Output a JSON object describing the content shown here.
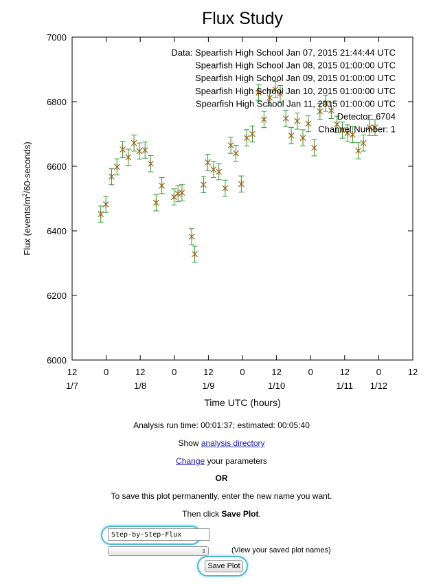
{
  "chart_data": {
    "type": "scatter",
    "title": "Flux Study",
    "xlabel": "Time UTC (hours)",
    "ylabel_main": "Flux (events/m",
    "ylabel_sup": "2",
    "ylabel_tail": "/60-seconds)",
    "ylim": [
      6000,
      7000
    ],
    "yticks": [
      6000,
      6200,
      6400,
      6600,
      6800,
      7000
    ],
    "xlim_hours": [
      -12,
      108
    ],
    "xticks": [
      {
        "h": -12,
        "l1": "12",
        "l2": "1/7"
      },
      {
        "h": 0,
        "l1": "0",
        "l2": ""
      },
      {
        "h": 12,
        "l1": "12",
        "l2": "1/8"
      },
      {
        "h": 24,
        "l1": "0",
        "l2": ""
      },
      {
        "h": 36,
        "l1": "12",
        "l2": "1/9"
      },
      {
        "h": 48,
        "l1": "0",
        "l2": ""
      },
      {
        "h": 60,
        "l1": "12",
        "l2": "1/10"
      },
      {
        "h": 72,
        "l1": "0",
        "l2": ""
      },
      {
        "h": 84,
        "l1": "12",
        "l2": "1/11"
      },
      {
        "h": 96,
        "l1": "0",
        "l2": "1/12"
      },
      {
        "h": 108,
        "l1": "12",
        "l2": ""
      }
    ],
    "annotations": [
      "Data: Spearfish High School Jan 07, 2015 21:44:44 UTC",
      "Spearfish High School Jan 08, 2015 01:00:00 UTC",
      "Spearfish High School Jan 09, 2015 01:00:00 UTC",
      "Spearfish High School Jan 10, 2015 01:00:00 UTC",
      "Spearfish High School Jan 11, 2015 01:00:00 UTC",
      "Detector: 6704",
      "Channel Number: 1"
    ],
    "grid": false,
    "marker_color": "#8a6a1e",
    "errorbar_color": "#2f9a2f",
    "series": [
      {
        "x_hours": [
          -1.9,
          -0.1,
          1.9,
          3.8,
          5.8,
          7.8,
          9.8,
          11.7,
          13.7,
          15.7,
          17.6,
          19.6,
          23.9,
          25.3,
          26.7,
          30.1,
          31.2,
          34.3,
          35.8,
          37.8,
          39.7,
          41.9,
          43.9,
          45.7,
          47.6,
          49.5,
          51.5,
          53.7,
          55.6,
          57.6,
          59.6,
          61.3,
          63.3,
          65.2,
          67.3,
          69.3,
          71.2,
          73.3,
          75.3,
          77.3,
          79.3,
          81.3,
          83.2,
          85.0,
          86.8,
          88.8,
          90.6,
          92.8,
          94.7
        ],
        "values": [
          6452,
          6482,
          6568,
          6598,
          6652,
          6628,
          6672,
          6647,
          6650,
          6608,
          6487,
          6540,
          6505,
          6515,
          6518,
          6382,
          6328,
          6543,
          6612,
          6590,
          6583,
          6532,
          6665,
          6640,
          6545,
          6688,
          6700,
          6828,
          6745,
          6812,
          6838,
          6825,
          6748,
          6695,
          6740,
          6688,
          6732,
          6657,
          6770,
          6795,
          6773,
          6730,
          6712,
          6703,
          6698,
          6648,
          6672,
          6720,
          6720
        ],
        "err": [
          25,
          25,
          25,
          25,
          25,
          25,
          25,
          25,
          25,
          25,
          25,
          25,
          25,
          25,
          25,
          25,
          25,
          25,
          25,
          25,
          25,
          25,
          25,
          25,
          25,
          25,
          25,
          25,
          25,
          25,
          25,
          25,
          25,
          25,
          25,
          25,
          25,
          25,
          25,
          25,
          25,
          25,
          25,
          25,
          25,
          25,
          25,
          25,
          25
        ]
      }
    ]
  },
  "page": {
    "run_time": "Analysis run time: 00:01:37; estimated: 00:05:40",
    "show_prefix": "Show ",
    "analysis_link": "analysis directory",
    "change_link": "Change",
    "change_suffix": " your parameters",
    "or_text": "OR",
    "save_instructions": "To save this plot permanently, enter the new name you want.",
    "then_click_prefix": "Then click ",
    "then_click_bold": "Save Plot",
    "then_click_suffix": ".",
    "name_value": "Step-by-Step-Flux",
    "select_value": "",
    "select_note": "(View your saved plot names)",
    "save_button": "Save Plot"
  }
}
